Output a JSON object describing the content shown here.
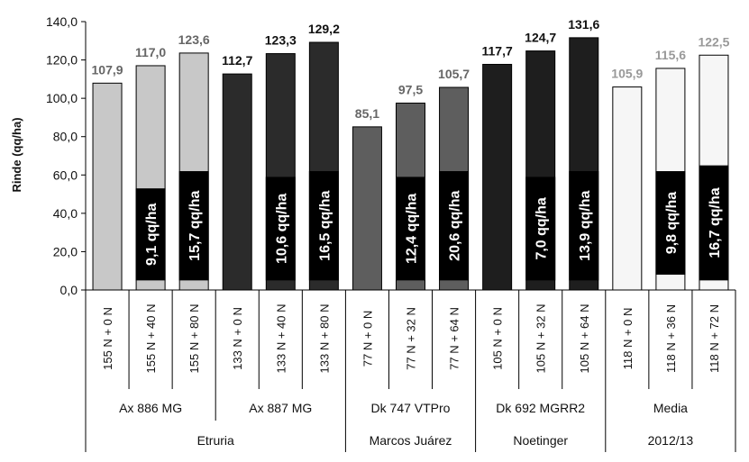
{
  "chart_data": {
    "type": "bar",
    "ylabel": "Rinde (qq/ha)",
    "ylim": [
      0,
      140
    ],
    "yticks": [
      "0,0",
      "20,0",
      "40,0",
      "60,0",
      "80,0",
      "100,0",
      "120,0",
      "140,0"
    ],
    "grid": false,
    "categories": [
      "155 N + 0 N",
      "155 N + 40 N",
      "155 N + 80 N",
      "133 N + 0 N",
      "133 N + 40 N",
      "133 N + 80 N",
      "77 N + 0 N",
      "77 N + 32 N",
      "77 N + 64 N",
      "105 N + 0 N",
      "105 N + 32 N",
      "105 N + 64 N",
      "118 N + 0 N",
      "118 N + 36 N",
      "118 N + 72 N"
    ],
    "values": [
      107.9,
      117.0,
      123.6,
      112.7,
      123.3,
      129.2,
      85.1,
      97.5,
      105.7,
      117.7,
      124.7,
      131.6,
      105.9,
      115.6,
      122.5
    ],
    "value_labels": [
      "107,9",
      "117,0",
      "123,6",
      "112,7",
      "123,3",
      "129,2",
      "85,1",
      "97,5",
      "105,7",
      "117,7",
      "124,7",
      "131,6",
      "105,9",
      "115,6",
      "122,5"
    ],
    "bar_colors": [
      "#c8c8c8",
      "#c8c8c8",
      "#c8c8c8",
      "#2b2b2b",
      "#2b2b2b",
      "#2b2b2b",
      "#5e5e5e",
      "#5e5e5e",
      "#5e5e5e",
      "#1e1e1e",
      "#1e1e1e",
      "#1e1e1e",
      "#f6f6f6",
      "#f6f6f6",
      "#f6f6f6"
    ],
    "label_colors": [
      "#666666",
      "#666666",
      "#666666",
      "#111111",
      "#111111",
      "#111111",
      "#666666",
      "#666666",
      "#666666",
      "#111111",
      "#111111",
      "#111111",
      "#999999",
      "#999999",
      "#999999"
    ],
    "annotations": [
      {
        "bar": 1,
        "text": "9,1 qq/ha",
        "from": 5,
        "to": 53
      },
      {
        "bar": 2,
        "text": "15,7 qq/ha",
        "from": 5,
        "to": 62
      },
      {
        "bar": 4,
        "text": "10,6 qq/ha",
        "from": 5,
        "to": 59
      },
      {
        "bar": 5,
        "text": "16,5 qq/ha",
        "from": 5,
        "to": 62
      },
      {
        "bar": 7,
        "text": "12,4 qq/ha",
        "from": 5,
        "to": 59
      },
      {
        "bar": 8,
        "text": "20,6 qq/ha",
        "from": 5,
        "to": 62
      },
      {
        "bar": 10,
        "text": "7,0 qq/ha",
        "from": 5,
        "to": 59
      },
      {
        "bar": 11,
        "text": "13,9 qq/ha",
        "from": 5,
        "to": 62
      },
      {
        "bar": 13,
        "text": "9,8 qq/ha",
        "from": 8,
        "to": 62
      },
      {
        "bar": 14,
        "text": "16,7 qq/ha",
        "from": 5,
        "to": 65
      }
    ],
    "hybrids": [
      {
        "label": "Ax 886 MG",
        "start": 0,
        "end": 2
      },
      {
        "label": "Ax 887 MG",
        "start": 3,
        "end": 5
      },
      {
        "label": "Dk 747 VTPro",
        "start": 6,
        "end": 8
      },
      {
        "label": "Dk 692 MGRR2",
        "start": 9,
        "end": 11
      },
      {
        "label": "Media",
        "start": 12,
        "end": 14
      }
    ],
    "locations": [
      {
        "label": "Etruria",
        "start": 0,
        "end": 5
      },
      {
        "label": "Marcos Juárez",
        "start": 6,
        "end": 8
      },
      {
        "label": "Noetinger",
        "start": 9,
        "end": 11
      },
      {
        "label": "2012/13",
        "start": 12,
        "end": 14
      }
    ]
  }
}
